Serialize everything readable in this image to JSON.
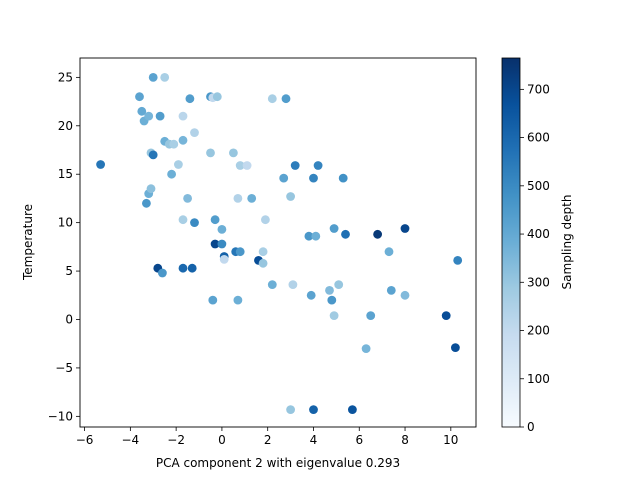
{
  "chart_data": {
    "type": "scatter",
    "title": "",
    "xlabel": "PCA component 2 with eigenvalue 0.293",
    "ylabel": "Temperature",
    "xlim": [
      -6.2,
      11.1
    ],
    "ylim": [
      -11.1,
      27.0
    ],
    "xticks": [
      -6,
      -4,
      -2,
      0,
      2,
      4,
      6,
      8,
      10
    ],
    "yticks": [
      -10,
      -5,
      0,
      5,
      10,
      15,
      20,
      25
    ],
    "grid": false,
    "colorbar": {
      "label": "Sampling depth",
      "colormap": "Blues",
      "min": 0,
      "max": 765,
      "ticks": [
        0,
        100,
        200,
        300,
        400,
        500,
        600,
        700
      ]
    },
    "points": [
      {
        "x": -5.3,
        "y": 16.0,
        "c": 560
      },
      {
        "x": -3.6,
        "y": 23.0,
        "c": 420
      },
      {
        "x": -3.5,
        "y": 21.5,
        "c": 400
      },
      {
        "x": -3.4,
        "y": 20.5,
        "c": 380
      },
      {
        "x": -3.2,
        "y": 21.0,
        "c": 360
      },
      {
        "x": -3.0,
        "y": 25.0,
        "c": 420
      },
      {
        "x": -2.7,
        "y": 21.0,
        "c": 440
      },
      {
        "x": -2.5,
        "y": 25.0,
        "c": 260
      },
      {
        "x": -2.5,
        "y": 18.4,
        "c": 380
      },
      {
        "x": -2.3,
        "y": 18.1,
        "c": 300
      },
      {
        "x": -2.1,
        "y": 18.1,
        "c": 260
      },
      {
        "x": -1.7,
        "y": 21.0,
        "c": 220
      },
      {
        "x": -1.7,
        "y": 18.5,
        "c": 360
      },
      {
        "x": -1.4,
        "y": 22.8,
        "c": 440
      },
      {
        "x": -1.2,
        "y": 19.3,
        "c": 240
      },
      {
        "x": -0.5,
        "y": 23.0,
        "c": 460
      },
      {
        "x": -0.4,
        "y": 22.9,
        "c": 200
      },
      {
        "x": -0.2,
        "y": 23.0,
        "c": 300
      },
      {
        "x": -3.1,
        "y": 17.2,
        "c": 300
      },
      {
        "x": -3.0,
        "y": 17.0,
        "c": 560
      },
      {
        "x": -1.9,
        "y": 16.0,
        "c": 260
      },
      {
        "x": -2.2,
        "y": 15.0,
        "c": 380
      },
      {
        "x": -3.2,
        "y": 13.0,
        "c": 380
      },
      {
        "x": -3.1,
        "y": 13.5,
        "c": 320
      },
      {
        "x": -3.3,
        "y": 12.0,
        "c": 460
      },
      {
        "x": -1.5,
        "y": 12.5,
        "c": 340
      },
      {
        "x": -0.5,
        "y": 17.2,
        "c": 300
      },
      {
        "x": 0.5,
        "y": 17.2,
        "c": 300
      },
      {
        "x": 0.8,
        "y": 15.9,
        "c": 260
      },
      {
        "x": 1.1,
        "y": 15.9,
        "c": 200
      },
      {
        "x": 0.7,
        "y": 12.5,
        "c": 240
      },
      {
        "x": 1.3,
        "y": 12.5,
        "c": 380
      },
      {
        "x": -1.7,
        "y": 10.3,
        "c": 260
      },
      {
        "x": -1.2,
        "y": 10.0,
        "c": 500
      },
      {
        "x": -0.3,
        "y": 10.3,
        "c": 440
      },
      {
        "x": -0.0,
        "y": 9.3,
        "c": 380
      },
      {
        "x": -0.3,
        "y": 7.8,
        "c": 700
      },
      {
        "x": 0.0,
        "y": 7.8,
        "c": 500
      },
      {
        "x": 0.1,
        "y": 6.5,
        "c": 620
      },
      {
        "x": 0.1,
        "y": 6.2,
        "c": 200
      },
      {
        "x": 0.6,
        "y": 7.0,
        "c": 560
      },
      {
        "x": 0.8,
        "y": 7.0,
        "c": 460
      },
      {
        "x": 1.8,
        "y": 7.0,
        "c": 260
      },
      {
        "x": 1.9,
        "y": 10.3,
        "c": 240
      },
      {
        "x": 1.6,
        "y": 6.1,
        "c": 680
      },
      {
        "x": 1.8,
        "y": 5.8,
        "c": 300
      },
      {
        "x": -2.8,
        "y": 5.3,
        "c": 700
      },
      {
        "x": -2.6,
        "y": 4.8,
        "c": 460
      },
      {
        "x": -1.7,
        "y": 5.3,
        "c": 600
      },
      {
        "x": -1.3,
        "y": 5.3,
        "c": 620
      },
      {
        "x": -0.4,
        "y": 2.0,
        "c": 420
      },
      {
        "x": 0.7,
        "y": 2.0,
        "c": 380
      },
      {
        "x": 2.2,
        "y": 22.8,
        "c": 260
      },
      {
        "x": 2.8,
        "y": 22.8,
        "c": 440
      },
      {
        "x": 2.7,
        "y": 14.6,
        "c": 420
      },
      {
        "x": 3.2,
        "y": 15.9,
        "c": 540
      },
      {
        "x": 3.0,
        "y": 12.7,
        "c": 300
      },
      {
        "x": 4.0,
        "y": 14.6,
        "c": 520
      },
      {
        "x": 4.2,
        "y": 15.9,
        "c": 520
      },
      {
        "x": 5.3,
        "y": 14.6,
        "c": 480
      },
      {
        "x": 3.8,
        "y": 8.6,
        "c": 460
      },
      {
        "x": 4.1,
        "y": 8.6,
        "c": 380
      },
      {
        "x": 4.9,
        "y": 9.4,
        "c": 440
      },
      {
        "x": 5.4,
        "y": 8.8,
        "c": 580
      },
      {
        "x": 6.8,
        "y": 8.8,
        "c": 740
      },
      {
        "x": 8.0,
        "y": 9.4,
        "c": 700
      },
      {
        "x": 2.2,
        "y": 3.6,
        "c": 380
      },
      {
        "x": 3.1,
        "y": 3.6,
        "c": 240
      },
      {
        "x": 3.9,
        "y": 2.5,
        "c": 420
      },
      {
        "x": 4.7,
        "y": 3.0,
        "c": 340
      },
      {
        "x": 5.1,
        "y": 3.6,
        "c": 300
      },
      {
        "x": 4.8,
        "y": 2.0,
        "c": 460
      },
      {
        "x": 4.9,
        "y": 0.4,
        "c": 280
      },
      {
        "x": 7.3,
        "y": 7.0,
        "c": 380
      },
      {
        "x": 7.4,
        "y": 3.0,
        "c": 420
      },
      {
        "x": 8.0,
        "y": 2.5,
        "c": 340
      },
      {
        "x": 6.5,
        "y": 0.4,
        "c": 420
      },
      {
        "x": 6.3,
        "y": -3.0,
        "c": 360
      },
      {
        "x": 9.8,
        "y": 0.4,
        "c": 680
      },
      {
        "x": 10.3,
        "y": 6.1,
        "c": 520
      },
      {
        "x": 10.2,
        "y": -2.9,
        "c": 680
      },
      {
        "x": 3.0,
        "y": -9.3,
        "c": 300
      },
      {
        "x": 4.0,
        "y": -9.3,
        "c": 620
      },
      {
        "x": 5.7,
        "y": -9.3,
        "c": 660
      }
    ]
  }
}
